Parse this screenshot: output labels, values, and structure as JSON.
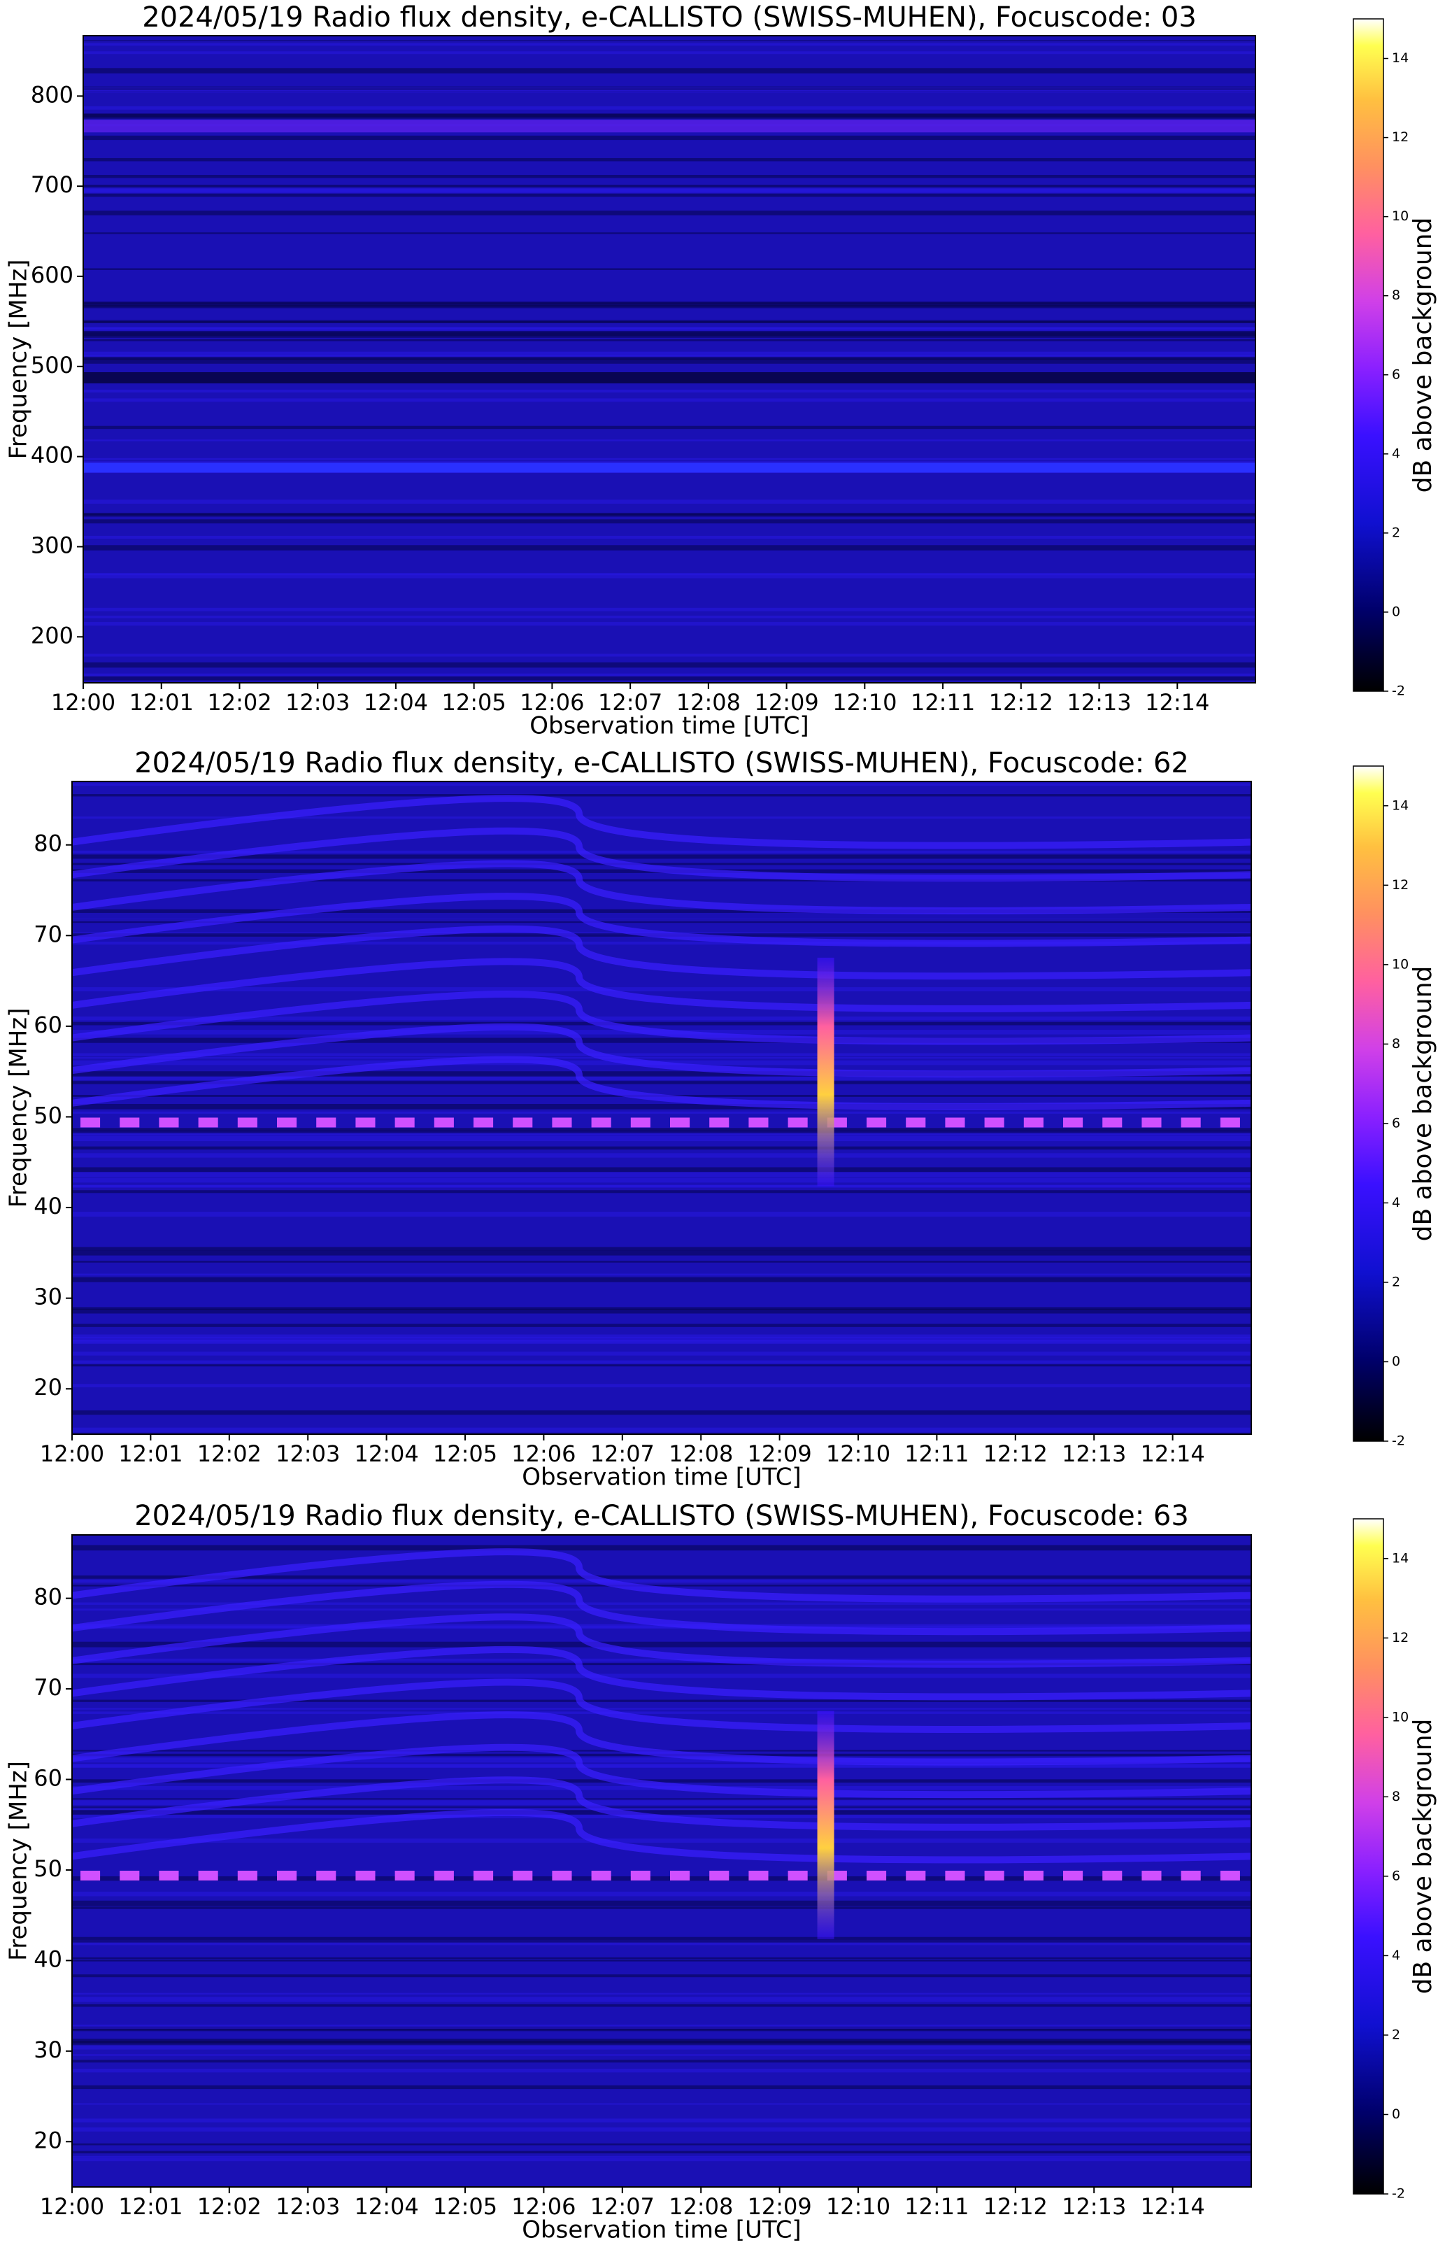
{
  "chart_data": [
    {
      "type": "heatmap",
      "title": "2024/05/19  Radio flux density, e-CALLISTO (SWISS-MUHEN), Focuscode: 03",
      "xlabel": "Observation time [UTC]",
      "ylabel": "Frequency [MHz]",
      "colorbar_label": "dB above background",
      "xticks": [
        "12:00",
        "12:01",
        "12:02",
        "12:03",
        "12:04",
        "12:05",
        "12:06",
        "12:07",
        "12:08",
        "12:09",
        "12:10",
        "12:11",
        "12:12",
        "12:13",
        "12:14"
      ],
      "ylim": [
        149,
        867
      ],
      "yticks": [
        200,
        300,
        400,
        500,
        600,
        700,
        800
      ],
      "colormap": "gnuplot2",
      "clim": [
        -2,
        15
      ],
      "cticks": [
        -2,
        0,
        2,
        4,
        6,
        8,
        10,
        12,
        14
      ]
    },
    {
      "type": "heatmap",
      "title": "2024/05/19  Radio flux density, e-CALLISTO (SWISS-MUHEN), Focuscode: 62",
      "xlabel": "Observation time [UTC]",
      "ylabel": "Frequency [MHz]",
      "colorbar_label": "dB above background",
      "xticks": [
        "12:00",
        "12:01",
        "12:02",
        "12:03",
        "12:04",
        "12:05",
        "12:06",
        "12:07",
        "12:08",
        "12:09",
        "12:10",
        "12:11",
        "12:12",
        "12:13",
        "12:14"
      ],
      "ylim": [
        15,
        87
      ],
      "yticks": [
        20,
        30,
        40,
        50,
        60,
        70,
        80
      ],
      "colormap": "gnuplot2",
      "clim": [
        -2,
        15
      ],
      "cticks": [
        -2,
        0,
        2,
        4,
        6,
        8,
        10,
        12,
        14
      ]
    },
    {
      "type": "heatmap",
      "title": "2024/05/19  Radio flux density, e-CALLISTO (SWISS-MUHEN), Focuscode: 63",
      "xlabel": "Observation time [UTC]",
      "ylabel": "Frequency [MHz]",
      "colorbar_label": "dB above background",
      "xticks": [
        "12:00",
        "12:01",
        "12:02",
        "12:03",
        "12:04",
        "12:05",
        "12:06",
        "12:07",
        "12:08",
        "12:09",
        "12:10",
        "12:11",
        "12:12",
        "12:13",
        "12:14"
      ],
      "ylim": [
        15,
        87
      ],
      "yticks": [
        20,
        30,
        40,
        50,
        60,
        70,
        80
      ],
      "colormap": "gnuplot2",
      "clim": [
        -2,
        15
      ],
      "cticks": [
        -2,
        0,
        2,
        4,
        6,
        8,
        10,
        12,
        14
      ]
    }
  ]
}
